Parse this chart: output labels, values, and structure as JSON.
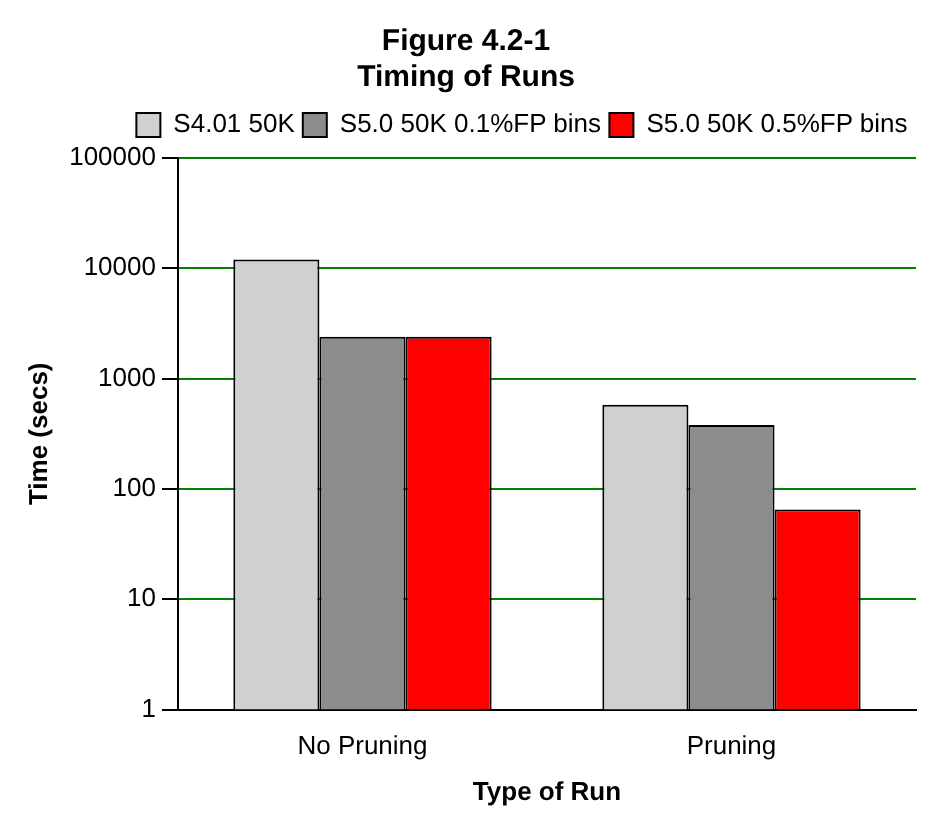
{
  "chart_data": {
    "type": "bar",
    "title": [
      "Figure 4.2-1",
      "Timing of Runs"
    ],
    "xlabel": "Type of Run",
    "ylabel": "Time (secs)",
    "categories": [
      "No Pruning",
      "Pruning"
    ],
    "series": [
      {
        "name": "S4.01 50K",
        "color": "#d0d0d0",
        "values": [
          12000,
          580
        ]
      },
      {
        "name": "S5.0 50K 0.1%FP bins",
        "color": "#8c8c8c",
        "values": [
          2400,
          380
        ]
      },
      {
        "name": "S5.0 50K 0.5%FP bins",
        "color": "#ff0000",
        "values": [
          2400,
          65
        ]
      }
    ],
    "log": "y",
    "ylim": [
      1,
      100000
    ],
    "yticks": [
      1,
      10,
      100,
      1000,
      10000,
      100000
    ],
    "grid": "y",
    "legend": "top right"
  }
}
